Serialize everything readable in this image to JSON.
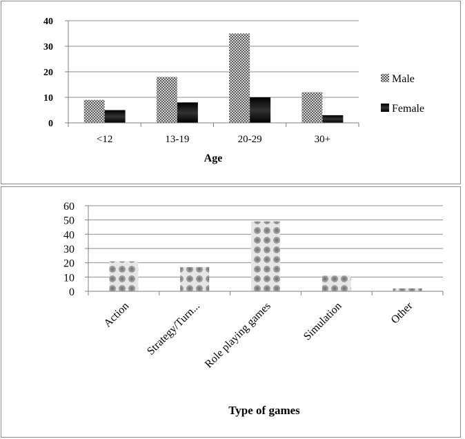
{
  "colors": {
    "male": "#8c8c8c",
    "female": "#111111",
    "gridline": "#8c8c8c",
    "axis": "#7f7f7f",
    "bar2": "#bdbdbd"
  },
  "chart_data": [
    {
      "type": "bar",
      "categories": [
        "<12",
        "13-19",
        "20-29",
        "30+"
      ],
      "series": [
        {
          "name": "Male",
          "values": [
            9,
            18,
            35,
            12
          ]
        },
        {
          "name": "Female",
          "values": [
            5,
            8,
            10,
            3
          ]
        }
      ],
      "title": "",
      "xlabel": "Age",
      "ylabel": "",
      "ylim": [
        0,
        40
      ],
      "yticks": [
        0,
        10,
        20,
        30,
        40
      ],
      "grid": true,
      "legend": "right"
    },
    {
      "type": "bar",
      "categories": [
        "Action",
        "Strategy/Turn...",
        "Role playing games",
        "Simulation",
        "Other"
      ],
      "values": [
        21,
        17,
        49,
        11,
        2
      ],
      "title": "",
      "xlabel": "Type of games",
      "ylabel": "",
      "ylim": [
        0,
        60
      ],
      "yticks": [
        0,
        10,
        20,
        30,
        40,
        50,
        60
      ],
      "grid": true,
      "legend": "none"
    }
  ]
}
